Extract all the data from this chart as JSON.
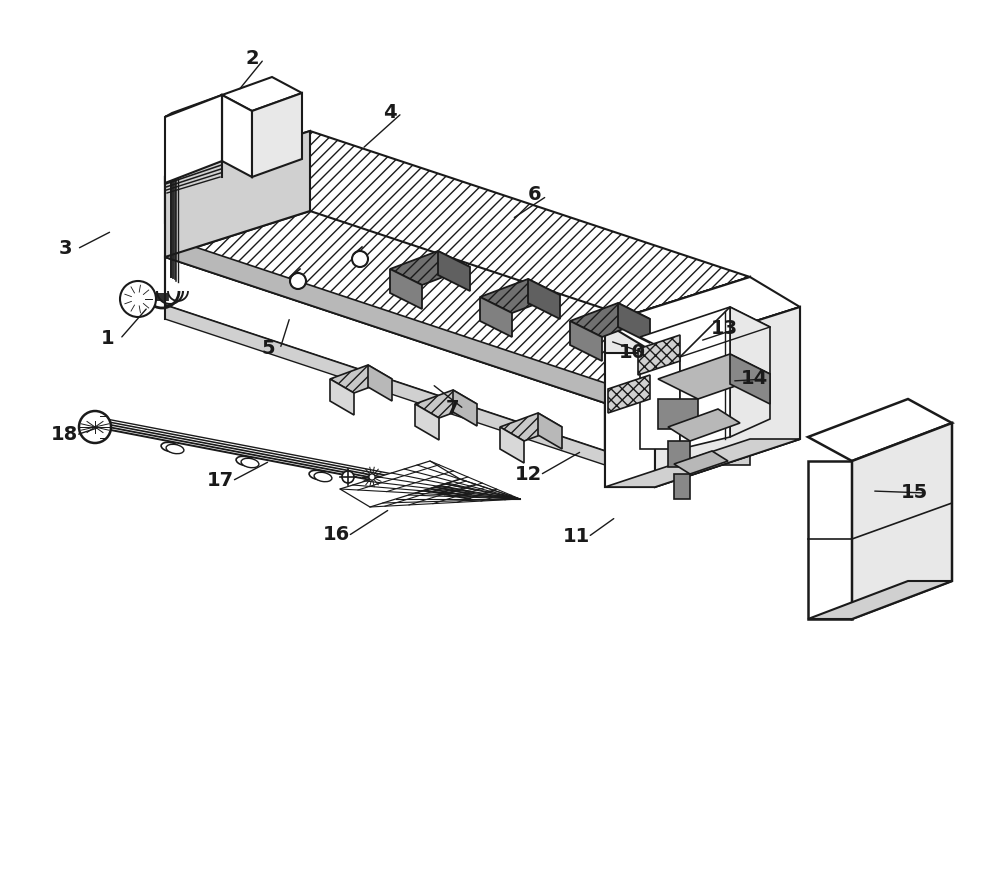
{
  "bg": "#ffffff",
  "lc": "#1a1a1a",
  "g1": "#e8e8e8",
  "g2": "#d0d0d0",
  "g3": "#b8b8b8",
  "g4": "#888888",
  "g5": "#606060",
  "figsize": [
    10.0,
    8.78
  ],
  "dpi": 100,
  "annotations": [
    [
      "1",
      108,
      338,
      148,
      308
    ],
    [
      "2",
      252,
      58,
      238,
      92
    ],
    [
      "3",
      65,
      248,
      112,
      232
    ],
    [
      "4",
      390,
      112,
      362,
      150
    ],
    [
      "5",
      268,
      348,
      290,
      318
    ],
    [
      "6",
      535,
      195,
      512,
      220
    ],
    [
      "7",
      452,
      408,
      432,
      385
    ],
    [
      "10",
      632,
      352,
      610,
      342
    ],
    [
      "11",
      576,
      536,
      616,
      518
    ],
    [
      "12",
      528,
      474,
      582,
      452
    ],
    [
      "13",
      724,
      328,
      700,
      342
    ],
    [
      "14",
      754,
      378,
      732,
      382
    ],
    [
      "15",
      914,
      492,
      872,
      492
    ],
    [
      "16",
      336,
      535,
      390,
      510
    ],
    [
      "17",
      220,
      480,
      270,
      462
    ],
    [
      "18",
      64,
      434,
      100,
      428
    ]
  ]
}
